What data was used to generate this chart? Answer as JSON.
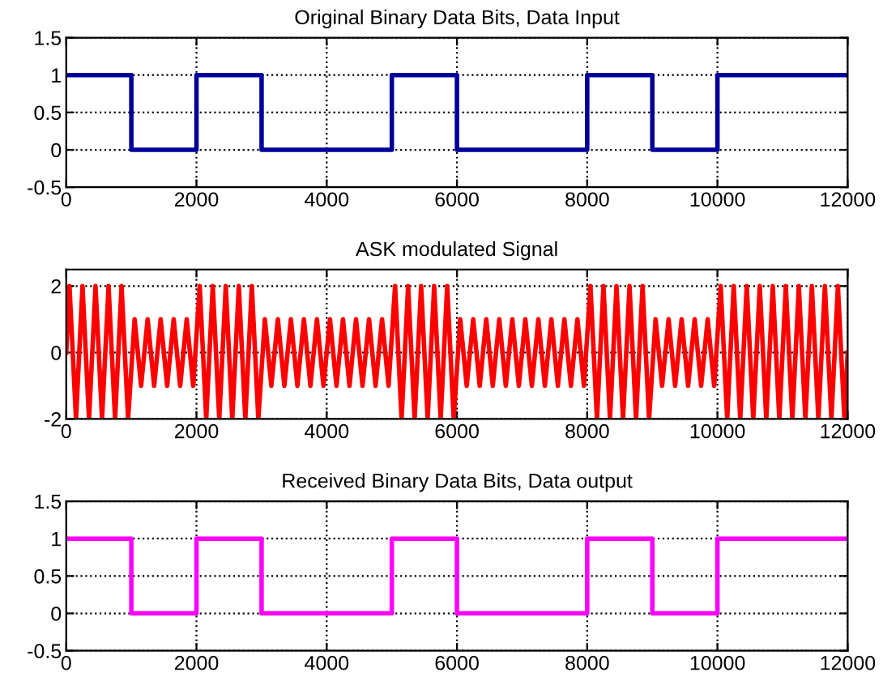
{
  "chart_data": [
    {
      "type": "step",
      "title": "Original Binary Data Bits, Data Input",
      "x": [
        0,
        1000,
        2000,
        3000,
        4000,
        5000,
        6000,
        7000,
        8000,
        9000,
        10000,
        11000,
        12000
      ],
      "series": [
        {
          "color": "#000099",
          "values": [
            1,
            0,
            1,
            0,
            0,
            1,
            0,
            0,
            1,
            0,
            1,
            1,
            1
          ]
        }
      ],
      "xlim": [
        0,
        12000
      ],
      "xticks": [
        0,
        2000,
        4000,
        6000,
        8000,
        10000,
        12000
      ],
      "ylim": [
        -0.5,
        1.5
      ],
      "yticks": [
        -0.5,
        0,
        0.5,
        1,
        1.5
      ],
      "grid": true
    },
    {
      "type": "line",
      "title": "ASK modulated Signal",
      "x": [
        0,
        50,
        150,
        250,
        350,
        450,
        550,
        650,
        750,
        850,
        950,
        1050,
        1150,
        1250,
        1350,
        1450,
        1550,
        1650,
        1750,
        1850,
        1950,
        2050,
        2150,
        2250,
        2350,
        2450,
        2550,
        2650,
        2750,
        2850,
        2950,
        3050,
        3150,
        3250,
        3350,
        3450,
        3550,
        3650,
        3750,
        3850,
        3950,
        4050,
        4150,
        4250,
        4350,
        4450,
        4550,
        4650,
        4750,
        4850,
        4950,
        5050,
        5150,
        5250,
        5350,
        5450,
        5550,
        5650,
        5750,
        5850,
        5950,
        6050,
        6150,
        6250,
        6350,
        6450,
        6550,
        6650,
        6750,
        6850,
        6950,
        7050,
        7150,
        7250,
        7350,
        7450,
        7550,
        7650,
        7750,
        7850,
        7950,
        8050,
        8150,
        8250,
        8350,
        8450,
        8550,
        8650,
        8750,
        8850,
        8950,
        9050,
        9150,
        9250,
        9350,
        9450,
        9550,
        9650,
        9750,
        9850,
        9950,
        10050,
        10150,
        10250,
        10350,
        10450,
        10550,
        10650,
        10750,
        10850,
        10950,
        11050,
        11150,
        11250,
        11350,
        11450,
        11550,
        11650,
        11750,
        11850,
        11950,
        12000
      ],
      "series": [
        {
          "color": "#ff0000",
          "values": [
            0,
            2,
            -2,
            2,
            -2,
            2,
            -2,
            2,
            -2,
            2,
            -2,
            1,
            -1,
            1,
            -1,
            1,
            -1,
            1,
            -1,
            1,
            -1,
            2,
            -2,
            2,
            -2,
            2,
            -2,
            2,
            -2,
            2,
            -2,
            1,
            -1,
            1,
            -1,
            1,
            -1,
            1,
            -1,
            1,
            -1,
            1,
            -1,
            1,
            -1,
            1,
            -1,
            1,
            -1,
            1,
            -1,
            2,
            -2,
            2,
            -2,
            2,
            -2,
            2,
            -2,
            2,
            -2,
            1,
            -1,
            1,
            -1,
            1,
            -1,
            1,
            -1,
            1,
            -1,
            1,
            -1,
            1,
            -1,
            1,
            -1,
            1,
            -1,
            1,
            -1,
            2,
            -2,
            2,
            -2,
            2,
            -2,
            2,
            -2,
            2,
            -2,
            1,
            -1,
            1,
            -1,
            1,
            -1,
            1,
            -1,
            1,
            -1,
            2,
            -2,
            2,
            -2,
            2,
            -2,
            2,
            -2,
            2,
            -2,
            2,
            -2,
            2,
            -2,
            2,
            -2,
            2,
            -2,
            2,
            -2,
            0
          ]
        }
      ],
      "xlim": [
        0,
        12000
      ],
      "xticks": [
        0,
        2000,
        4000,
        6000,
        8000,
        10000,
        12000
      ],
      "ylim": [
        -2,
        2.5
      ],
      "yticks": [
        -2,
        0,
        2
      ],
      "grid": true
    },
    {
      "type": "step",
      "title": "Received Binary Data Bits, Data output",
      "x": [
        0,
        1000,
        2000,
        3000,
        4000,
        5000,
        6000,
        7000,
        8000,
        9000,
        10000,
        11000,
        12000
      ],
      "series": [
        {
          "color": "#ff00ff",
          "values": [
            1,
            0,
            1,
            0,
            0,
            1,
            0,
            0,
            1,
            0,
            1,
            1,
            1
          ]
        }
      ],
      "xlim": [
        0,
        12000
      ],
      "xticks": [
        0,
        2000,
        4000,
        6000,
        8000,
        10000,
        12000
      ],
      "ylim": [
        -0.5,
        1.5
      ],
      "yticks": [
        -0.5,
        0,
        0.5,
        1,
        1.5
      ],
      "grid": true
    }
  ]
}
